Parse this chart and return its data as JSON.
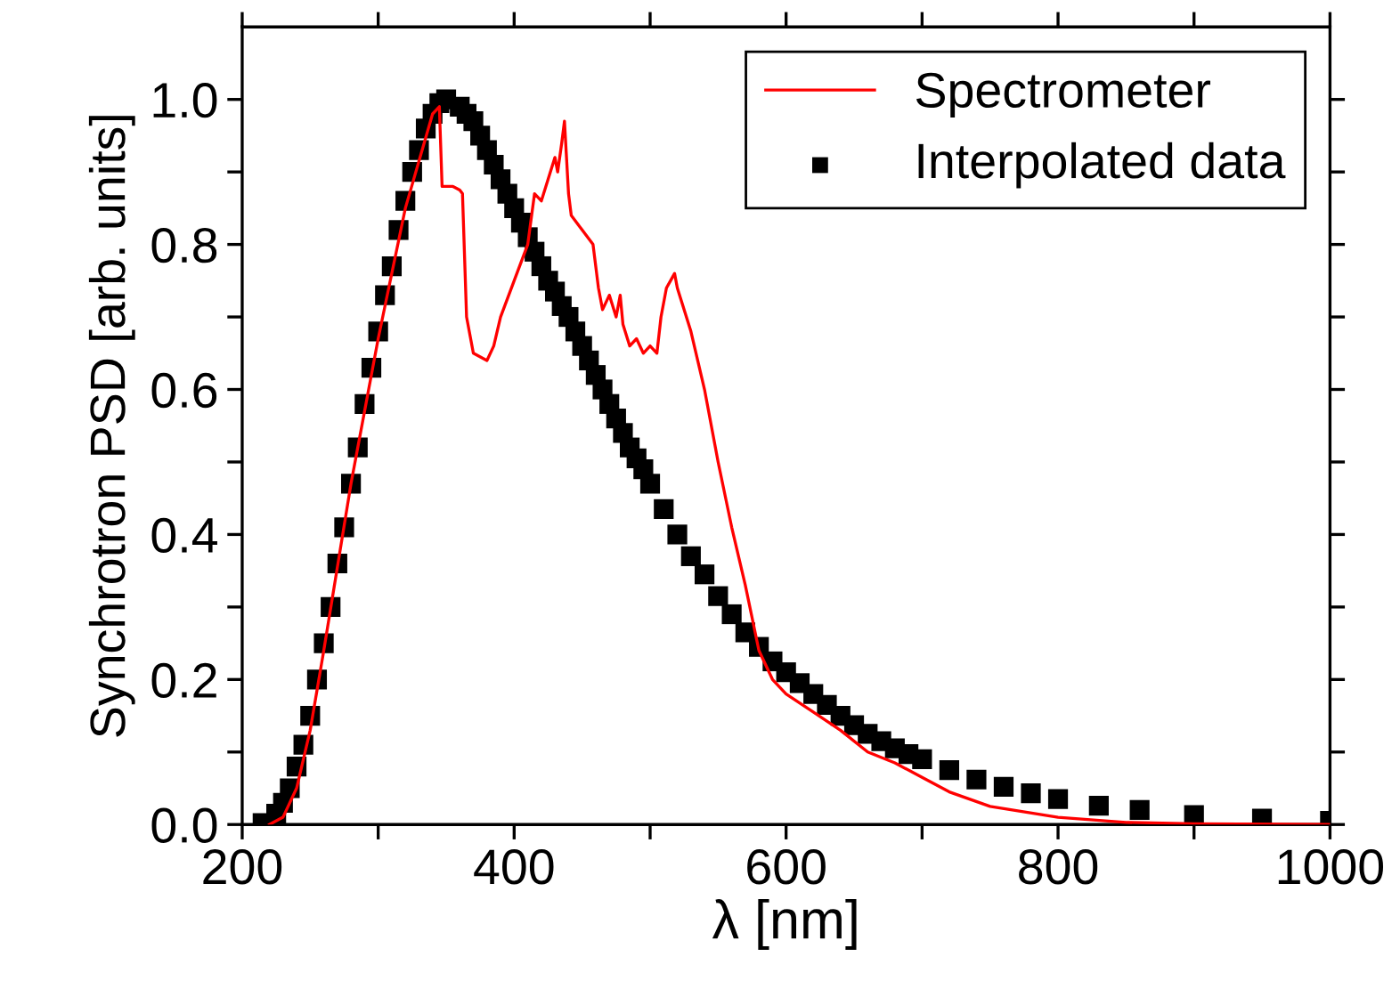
{
  "chart_data": {
    "type": "line",
    "xlabel": "λ [nm]",
    "ylabel": "Synchrotron PSD [arb. units]",
    "xlim": [
      200,
      1000
    ],
    "ylim": [
      0,
      1.1
    ],
    "xticks": [
      200,
      {
        "value": 300,
        "label": null
      },
      400,
      {
        "value": 500,
        "label": null
      },
      600,
      {
        "value": 700,
        "label": null
      },
      800,
      {
        "value": 900,
        "label": null
      },
      1000
    ],
    "yticks": [
      {
        "value": 0,
        "label": "0.0"
      },
      {
        "value": 0.1,
        "label": null
      },
      {
        "value": 0.2,
        "label": "0.2"
      },
      {
        "value": 0.3,
        "label": null
      },
      {
        "value": 0.4,
        "label": "0.4"
      },
      {
        "value": 0.5,
        "label": null
      },
      {
        "value": 0.6,
        "label": "0.6"
      },
      {
        "value": 0.7,
        "label": null
      },
      {
        "value": 0.8,
        "label": "0.8"
      },
      {
        "value": 0.9,
        "label": null
      },
      {
        "value": 1.0,
        "label": "1.0"
      }
    ],
    "grid": false,
    "legend": "top right",
    "series": [
      {
        "name": "Spectrometer",
        "color": "#ff0000",
        "line_style": "solid",
        "marker": "none",
        "x": [
          220,
          230,
          240,
          250,
          260,
          280,
          300,
          320,
          340,
          345,
          347,
          355,
          360,
          362,
          365,
          370,
          380,
          385,
          390,
          400,
          410,
          415,
          420,
          425,
          430,
          432,
          435,
          437,
          440,
          442,
          450,
          458,
          462,
          465,
          470,
          475,
          478,
          480,
          485,
          490,
          495,
          500,
          505,
          508,
          512,
          515,
          518,
          520,
          530,
          540,
          550,
          560,
          570,
          580,
          590,
          600,
          620,
          640,
          660,
          680,
          700,
          720,
          750,
          800,
          850,
          900,
          1000
        ],
        "values": [
          0.0,
          0.01,
          0.05,
          0.13,
          0.24,
          0.47,
          0.67,
          0.85,
          0.98,
          0.99,
          0.88,
          0.88,
          0.875,
          0.87,
          0.7,
          0.65,
          0.64,
          0.66,
          0.7,
          0.75,
          0.8,
          0.87,
          0.86,
          0.89,
          0.92,
          0.9,
          0.94,
          0.97,
          0.87,
          0.84,
          0.82,
          0.8,
          0.74,
          0.71,
          0.73,
          0.7,
          0.73,
          0.69,
          0.66,
          0.67,
          0.65,
          0.66,
          0.65,
          0.7,
          0.74,
          0.75,
          0.76,
          0.74,
          0.68,
          0.6,
          0.5,
          0.41,
          0.33,
          0.24,
          0.2,
          0.18,
          0.155,
          0.13,
          0.1,
          0.085,
          0.065,
          0.045,
          0.025,
          0.01,
          0.003,
          0.001,
          0.0
        ]
      },
      {
        "name": "Interpolated data",
        "type": "scatter",
        "color": "#000000",
        "marker": "square",
        "x": [
          215,
          225,
          230,
          235,
          240,
          245,
          250,
          255,
          260,
          265,
          270,
          275,
          280,
          285,
          290,
          295,
          300,
          305,
          310,
          315,
          320,
          325,
          330,
          335,
          340,
          345,
          350,
          360,
          365,
          370,
          375,
          380,
          385,
          390,
          395,
          400,
          405,
          410,
          415,
          420,
          425,
          430,
          435,
          440,
          445,
          450,
          455,
          460,
          465,
          470,
          475,
          480,
          485,
          490,
          495,
          500,
          510,
          520,
          530,
          540,
          550,
          560,
          570,
          580,
          590,
          600,
          610,
          620,
          630,
          640,
          650,
          660,
          670,
          680,
          690,
          700,
          720,
          740,
          760,
          780,
          800,
          830,
          860,
          900,
          950,
          1000
        ],
        "values": [
          0.002,
          0.015,
          0.03,
          0.05,
          0.08,
          0.11,
          0.15,
          0.2,
          0.25,
          0.3,
          0.36,
          0.41,
          0.47,
          0.52,
          0.58,
          0.63,
          0.68,
          0.73,
          0.77,
          0.82,
          0.86,
          0.9,
          0.93,
          0.96,
          0.98,
          0.995,
          1.0,
          0.99,
          0.98,
          0.97,
          0.95,
          0.93,
          0.91,
          0.89,
          0.87,
          0.85,
          0.83,
          0.81,
          0.79,
          0.77,
          0.75,
          0.735,
          0.715,
          0.7,
          0.68,
          0.66,
          0.64,
          0.62,
          0.6,
          0.58,
          0.56,
          0.54,
          0.52,
          0.505,
          0.49,
          0.47,
          0.435,
          0.4,
          0.37,
          0.345,
          0.315,
          0.29,
          0.265,
          0.245,
          0.225,
          0.21,
          0.195,
          0.18,
          0.165,
          0.15,
          0.137,
          0.125,
          0.115,
          0.105,
          0.097,
          0.09,
          0.075,
          0.062,
          0.052,
          0.043,
          0.035,
          0.026,
          0.02,
          0.013,
          0.008,
          0.005
        ]
      }
    ]
  }
}
